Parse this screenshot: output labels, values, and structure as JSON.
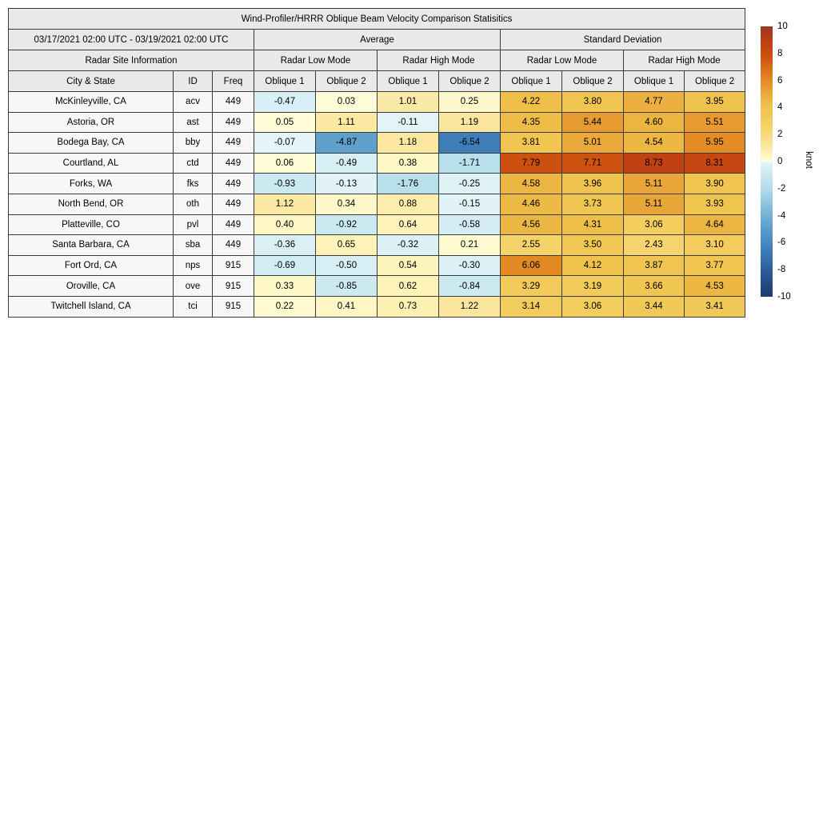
{
  "title": "Wind-Profiler/HRRR Oblique Beam Velocity Comparison Statisitics",
  "period": "03/17/2021 02:00 UTC - 03/19/2021 02:00 UTC",
  "header": {
    "average": "Average",
    "std_dev": "Standard Deviation",
    "site_info": "Radar Site Information",
    "low_mode": "Radar Low Mode",
    "high_mode": "Radar High Mode",
    "city_state": "City & State",
    "id": "ID",
    "freq": "Freq",
    "oblique1": "Oblique 1",
    "oblique2": "Oblique 2"
  },
  "colorbar": {
    "label": "knot",
    "ticks": [
      10,
      8,
      6,
      4,
      2,
      0,
      -2,
      -4,
      -6,
      -8,
      -10
    ],
    "vmin": -10,
    "vmax": 10
  },
  "colormap_anchors": [
    [
      -10,
      "#1d3a6d"
    ],
    [
      -8,
      "#2e5e99"
    ],
    [
      -6.5,
      "#3f7eba"
    ],
    [
      -5,
      "#599dca"
    ],
    [
      -3.5,
      "#82badb"
    ],
    [
      -2,
      "#b3ddea"
    ],
    [
      -1,
      "#c9e8f0"
    ],
    [
      -0.3,
      "#dcf1f6"
    ],
    [
      -0.02,
      "#e6f5f8"
    ],
    [
      0.02,
      "#fffdda"
    ],
    [
      0.6,
      "#fdf3b9"
    ],
    [
      1.3,
      "#fae49a"
    ],
    [
      2.2,
      "#f7d773"
    ],
    [
      3.2,
      "#f2cb5b"
    ],
    [
      4.2,
      "#eec14a"
    ],
    [
      5,
      "#eaa93a"
    ],
    [
      5.7,
      "#e6952b"
    ],
    [
      6.3,
      "#e08120"
    ],
    [
      7,
      "#d76a17"
    ],
    [
      7.9,
      "#cb4d10"
    ],
    [
      8.8,
      "#bf4014"
    ],
    [
      9.4,
      "#ad3c1b"
    ],
    [
      10,
      "#9b3822"
    ]
  ],
  "chart_data": {
    "type": "heatmap",
    "title": "Wind-Profiler/HRRR Oblique Beam Velocity Comparison Statisitics",
    "period": "03/17/2021 02:00 UTC - 03/19/2021 02:00 UTC",
    "units": "knot",
    "color_scale_range": [
      -10,
      10
    ],
    "value_columns": [
      "Average Radar Low Mode Oblique 1",
      "Average Radar Low Mode Oblique 2",
      "Average Radar High Mode Oblique 1",
      "Average Radar High Mode Oblique 2",
      "Std Dev Radar Low Mode Oblique 1",
      "Std Dev Radar Low Mode Oblique 2",
      "Std Dev Radar High Mode Oblique 1",
      "Std Dev Radar High Mode Oblique 2"
    ],
    "rows": [
      {
        "city": "McKinleyville, CA",
        "id": "acv",
        "freq": "449",
        "values": [
          -0.47,
          0.03,
          1.01,
          0.25,
          4.22,
          3.8,
          4.77,
          3.95
        ]
      },
      {
        "city": "Astoria, OR",
        "id": "ast",
        "freq": "449",
        "values": [
          0.05,
          1.11,
          -0.11,
          1.19,
          4.35,
          5.44,
          4.6,
          5.51
        ]
      },
      {
        "city": "Bodega Bay, CA",
        "id": "bby",
        "freq": "449",
        "values": [
          -0.07,
          -4.87,
          1.18,
          -6.54,
          3.81,
          5.01,
          4.54,
          5.95
        ]
      },
      {
        "city": "Courtland, AL",
        "id": "ctd",
        "freq": "449",
        "values": [
          0.06,
          -0.49,
          0.38,
          -1.71,
          7.79,
          7.71,
          8.73,
          8.31
        ]
      },
      {
        "city": "Forks, WA",
        "id": "fks",
        "freq": "449",
        "values": [
          -0.93,
          -0.13,
          -1.76,
          -0.25,
          4.58,
          3.96,
          5.11,
          3.9
        ]
      },
      {
        "city": "North Bend, OR",
        "id": "oth",
        "freq": "449",
        "values": [
          1.12,
          0.34,
          0.88,
          -0.15,
          4.46,
          3.73,
          5.11,
          3.93
        ]
      },
      {
        "city": "Platteville, CO",
        "id": "pvl",
        "freq": "449",
        "values": [
          0.4,
          -0.92,
          0.64,
          -0.58,
          4.56,
          4.31,
          3.06,
          4.64
        ]
      },
      {
        "city": "Santa Barbara, CA",
        "id": "sba",
        "freq": "449",
        "values": [
          -0.36,
          0.65,
          -0.32,
          0.21,
          2.55,
          3.5,
          2.43,
          3.1
        ]
      },
      {
        "city": "Fort Ord, CA",
        "id": "nps",
        "freq": "915",
        "values": [
          -0.69,
          -0.5,
          0.54,
          -0.3,
          6.06,
          4.12,
          3.87,
          3.77
        ]
      },
      {
        "city": "Oroville, CA",
        "id": "ove",
        "freq": "915",
        "values": [
          0.33,
          -0.85,
          0.62,
          -0.84,
          3.29,
          3.19,
          3.66,
          4.53
        ]
      },
      {
        "city": "Twitchell Island, CA",
        "id": "tci",
        "freq": "915",
        "values": [
          0.22,
          0.41,
          0.73,
          1.22,
          3.14,
          3.06,
          3.44,
          3.41
        ]
      }
    ]
  }
}
